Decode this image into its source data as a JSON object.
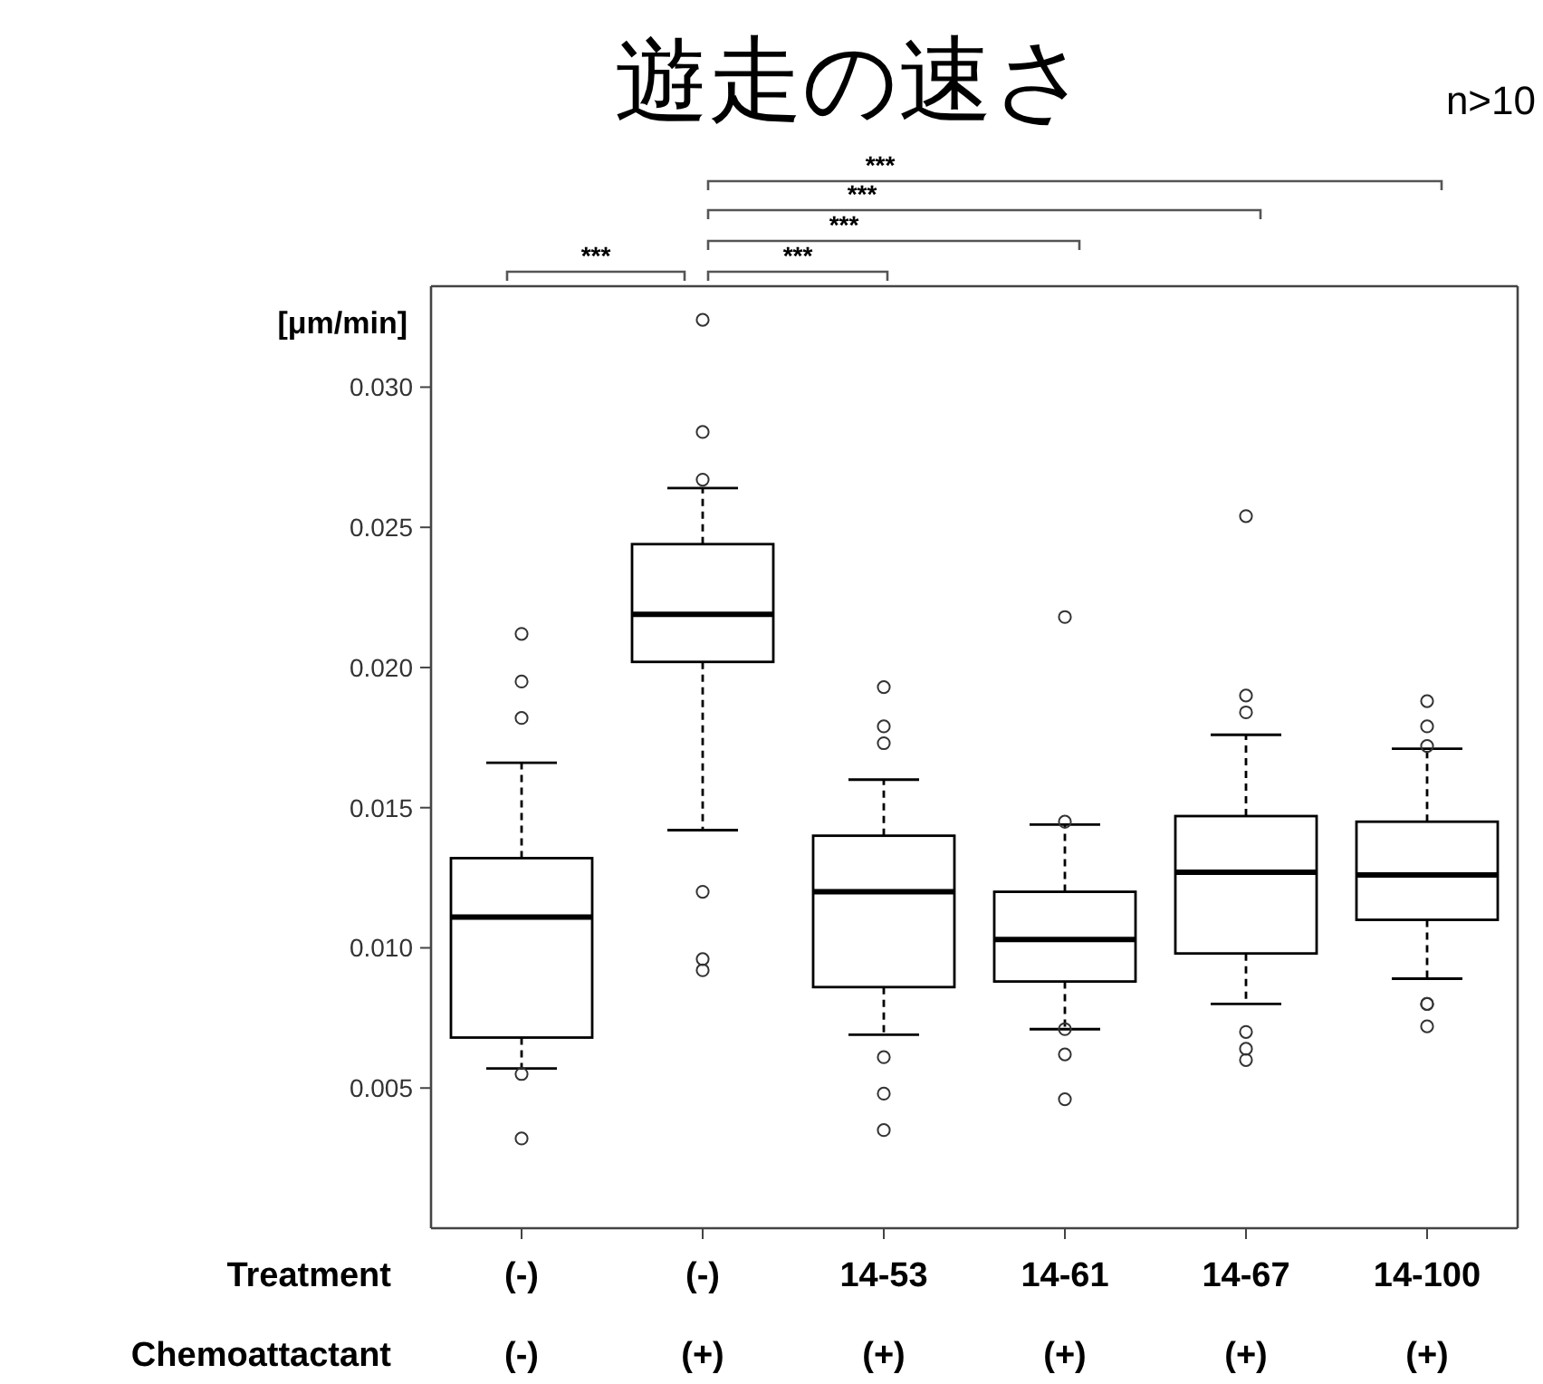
{
  "chart_data": {
    "type": "box",
    "title": "遊走の速さ",
    "ylabel": "[μm/min]",
    "categories": [
      "(-)\n(-)",
      "(-)\n(+)",
      "14-53\n(+)",
      "14-61\n(+)",
      "14-67\n(+)",
      "14-100\n(+)"
    ],
    "boxes": [
      {
        "low": 0.0057,
        "q1": 0.0068,
        "median": 0.0111,
        "q3": 0.0132,
        "high": 0.0166,
        "outliers": [
          0.0212,
          0.0195,
          0.0182,
          0.0055,
          0.0032
        ]
      },
      {
        "low": 0.0142,
        "q1": 0.0202,
        "median": 0.0219,
        "q3": 0.0244,
        "high": 0.0264,
        "outliers": [
          0.0324,
          0.0284,
          0.0267,
          0.012,
          0.0096,
          0.0092
        ]
      },
      {
        "low": 0.0069,
        "q1": 0.0086,
        "median": 0.012,
        "q3": 0.014,
        "high": 0.016,
        "outliers": [
          0.0193,
          0.0179,
          0.0173,
          0.0061,
          0.0048,
          0.0035
        ]
      },
      {
        "low": 0.0071,
        "q1": 0.0088,
        "median": 0.0103,
        "q3": 0.012,
        "high": 0.0144,
        "outliers": [
          0.0218,
          0.0145,
          0.0071,
          0.0062,
          0.0046
        ]
      },
      {
        "low": 0.008,
        "q1": 0.0098,
        "median": 0.0127,
        "q3": 0.0147,
        "high": 0.0176,
        "outliers": [
          0.0254,
          0.019,
          0.0184,
          0.007,
          0.0064,
          0.006
        ]
      },
      {
        "low": 0.0089,
        "q1": 0.011,
        "median": 0.0126,
        "q3": 0.0145,
        "high": 0.0171,
        "outliers": [
          0.0188,
          0.0179,
          0.0172,
          0.008,
          0.008,
          0.0072
        ]
      }
    ],
    "ylim": [
      0,
      0.0336
    ],
    "yticks": [
      0.005,
      {
        "value": 0.01,
        "label": "0.010"
      },
      0.015,
      {
        "value": 0.02,
        "label": "0.020"
      },
      0.025,
      {
        "value": 0.03,
        "label": "0.030"
      }
    ],
    "annotations": [
      "***",
      "***",
      "***",
      "***",
      "***",
      "n>10",
      "Treatment",
      "Chemoattactant"
    ],
    "grid": false
  }
}
